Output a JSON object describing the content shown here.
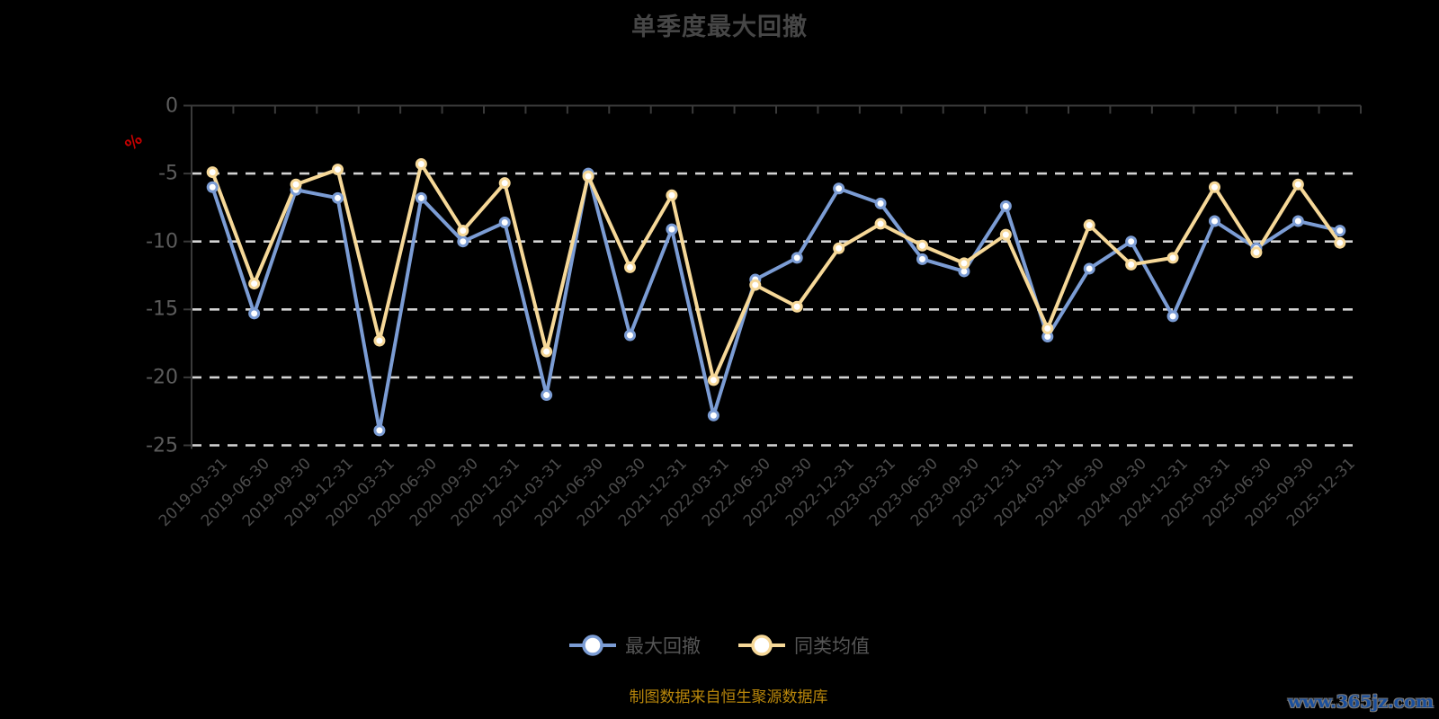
{
  "header": {
    "title": "单季度最大回撤"
  },
  "chart_data": {
    "type": "line",
    "title": "单季度最大回撤",
    "y_unit": "%",
    "ylabel": "",
    "xlabel": "",
    "ylim": [
      -25,
      0
    ],
    "y_ticks": [
      0,
      -5,
      -10,
      -15,
      -20,
      -25
    ],
    "grid": true,
    "legend_position": "bottom",
    "categories": [
      "2019-03-31",
      "2019-06-30",
      "2019-09-30",
      "2019-12-31",
      "2020-03-31",
      "2020-06-30",
      "2020-09-30",
      "2020-12-31",
      "2021-03-31",
      "2021-06-30",
      "2021-09-30",
      "2021-12-31",
      "2022-03-31",
      "2022-06-30",
      "2022-09-30",
      "2022-12-31",
      "2023-03-31",
      "2023-06-30",
      "2023-09-30",
      "2023-12-31",
      "2024-03-31",
      "2024-06-30",
      "2024-09-30",
      "2024-12-31",
      "2025-03-31",
      "2025-06-30",
      "2025-09-30",
      "2025-12-31"
    ],
    "series": [
      {
        "name": "最大回撤",
        "color": "#7b9cd4",
        "values": [
          -6.0,
          -15.3,
          -6.2,
          -6.8,
          -23.9,
          -6.8,
          -10.0,
          -8.6,
          -21.3,
          -5.0,
          -16.9,
          -9.1,
          -22.8,
          -12.8,
          -11.2,
          -6.1,
          -7.2,
          -11.3,
          -12.2,
          -7.4,
          -17.0,
          -12.0,
          -10.0,
          -15.5,
          -8.5,
          -10.5,
          -8.5,
          -9.2
        ]
      },
      {
        "name": "同类均值",
        "color": "#f6d898",
        "values": [
          -4.9,
          -13.1,
          -5.8,
          -4.7,
          -17.3,
          -4.3,
          -9.2,
          -5.7,
          -18.1,
          -5.2,
          -11.9,
          -6.6,
          -20.2,
          -13.2,
          -14.8,
          -10.5,
          -8.7,
          -10.3,
          -11.6,
          -9.5,
          -16.4,
          -8.8,
          -11.7,
          -11.2,
          -6.0,
          -10.8,
          -5.8,
          -10.1
        ]
      }
    ]
  },
  "legend": {
    "items": [
      {
        "label": "最大回撤",
        "color": "#7b9cd4"
      },
      {
        "label": "同类均值",
        "color": "#f6d898"
      }
    ]
  },
  "footer": {
    "source": "制图数据来自恒生聚源数据库",
    "watermark": "www.365jz.com"
  },
  "colors": {
    "background": "#000000",
    "grid_line": "#d4d4d4",
    "axis_line": "#3a3a3a",
    "y_tick_label": "#5c5c5c",
    "x_tick_label": "#4c4c4c",
    "title": "#464646",
    "unit_label": "#c40000",
    "source_text": "#b8860b",
    "watermark_text": "#1a4f9c",
    "marker_fill": "#ffffff"
  }
}
